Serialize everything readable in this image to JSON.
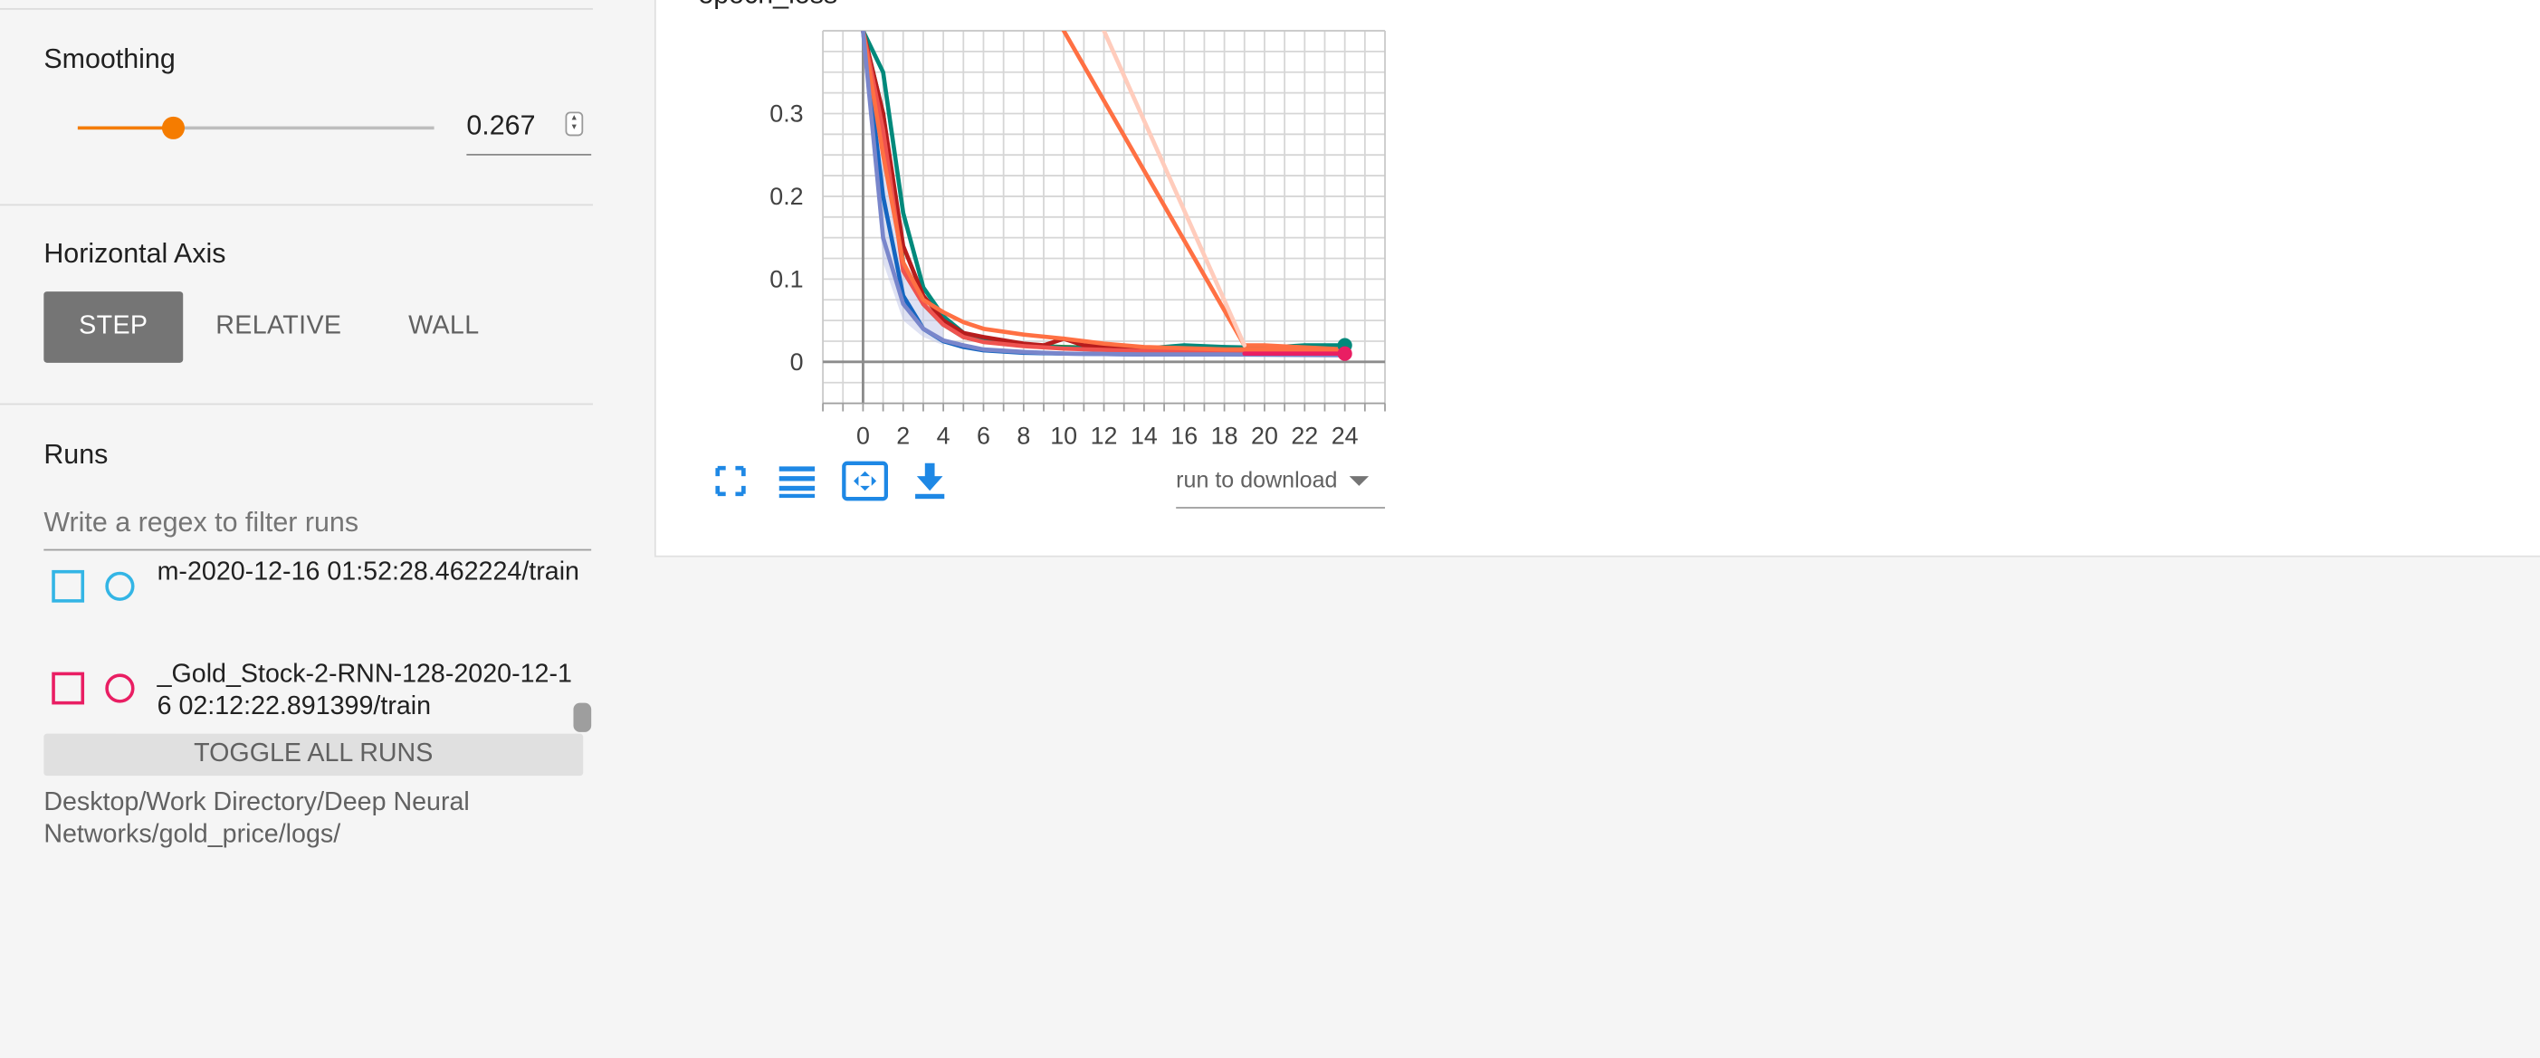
{
  "sidebar": {
    "smoothing": {
      "title": "Smoothing",
      "value": "0.267",
      "slider_fraction": 0.267
    },
    "horizontal_axis": {
      "title": "Horizontal Axis",
      "options": [
        "STEP",
        "RELATIVE",
        "WALL"
      ],
      "selected": "STEP"
    },
    "runs": {
      "title": "Runs",
      "filter_placeholder": "Write a regex to filter runs",
      "items": [
        {
          "label": "m-2020-12-16 01:52:28.462224/train",
          "color": "#33b5e5",
          "checked": false
        },
        {
          "label": "_Gold_Stock-2-RNN-128-2020-12-16 02:12:22.891399/train",
          "color": "#e91e63",
          "checked": false
        }
      ],
      "toggle_all_label": "TOGGLE ALL RUNS",
      "log_dir": "Desktop/Work Directory/Deep Neural Networks/gold_price/logs/"
    }
  },
  "card": {
    "title": "epoch_loss",
    "download_placeholder": "run to download",
    "tools": [
      "fullscreen-icon",
      "data-table-icon",
      "fit-domain-icon",
      "download-icon"
    ]
  },
  "chart_data": {
    "type": "line",
    "title": "epoch_loss",
    "xlabel": "",
    "ylabel": "",
    "x_ticks": [
      0,
      2,
      4,
      6,
      8,
      10,
      12,
      14,
      16,
      18,
      20,
      22,
      24
    ],
    "y_ticks": [
      "0",
      "0.1",
      "0.2",
      "0.3"
    ],
    "xlim": [
      -2,
      26
    ],
    "ylim": [
      -0.05,
      0.4
    ],
    "grid": true,
    "series": [
      {
        "color": "#1565c0",
        "values": [
          [
            0,
            0.4
          ],
          [
            1,
            0.2
          ],
          [
            2,
            0.08
          ],
          [
            3,
            0.04
          ],
          [
            4,
            0.025
          ],
          [
            5,
            0.018
          ],
          [
            6,
            0.014
          ],
          [
            8,
            0.011
          ],
          [
            10,
            0.01
          ],
          [
            14,
            0.009
          ],
          [
            18,
            0.009
          ],
          [
            24,
            0.009
          ]
        ]
      },
      {
        "color": "#2e7d32",
        "values": [
          [
            0,
            0.4
          ],
          [
            1,
            0.3
          ],
          [
            2,
            0.12
          ],
          [
            3,
            0.07
          ],
          [
            4,
            0.045
          ],
          [
            5,
            0.03
          ],
          [
            6,
            0.025
          ],
          [
            8,
            0.02
          ],
          [
            10,
            0.018
          ],
          [
            14,
            0.016
          ],
          [
            18,
            0.017
          ],
          [
            24,
            0.018
          ]
        ]
      },
      {
        "color": "#00897b",
        "values": [
          [
            0,
            0.4
          ],
          [
            1,
            0.35
          ],
          [
            2,
            0.18
          ],
          [
            3,
            0.09
          ],
          [
            4,
            0.055
          ],
          [
            5,
            0.035
          ],
          [
            6,
            0.026
          ],
          [
            8,
            0.02
          ],
          [
            10,
            0.017
          ],
          [
            14,
            0.016
          ],
          [
            16,
            0.02
          ],
          [
            18,
            0.018
          ],
          [
            20,
            0.017
          ],
          [
            22,
            0.02
          ],
          [
            24,
            0.02
          ]
        ]
      },
      {
        "color": "#b71c1c",
        "values": [
          [
            0,
            0.4
          ],
          [
            1,
            0.3
          ],
          [
            2,
            0.14
          ],
          [
            3,
            0.08
          ],
          [
            4,
            0.05
          ],
          [
            5,
            0.035
          ],
          [
            6,
            0.03
          ],
          [
            8,
            0.022
          ],
          [
            9,
            0.02
          ],
          [
            10,
            0.028
          ],
          [
            11,
            0.02
          ],
          [
            14,
            0.015
          ],
          [
            18,
            0.013
          ],
          [
            24,
            0.013
          ]
        ]
      },
      {
        "color": "#ef5350",
        "values": [
          [
            0,
            0.4
          ],
          [
            1,
            0.28
          ],
          [
            2,
            0.11
          ],
          [
            3,
            0.07
          ],
          [
            4,
            0.045
          ],
          [
            5,
            0.03
          ],
          [
            6,
            0.024
          ],
          [
            8,
            0.019
          ],
          [
            10,
            0.016
          ],
          [
            14,
            0.013
          ],
          [
            18,
            0.012
          ],
          [
            24,
            0.011
          ]
        ]
      },
      {
        "color": "#ff7043",
        "values": [
          [
            0,
            0.4
          ],
          [
            1,
            0.25
          ],
          [
            2,
            0.12
          ],
          [
            3,
            0.075
          ],
          [
            4,
            0.06
          ],
          [
            5,
            0.048
          ],
          [
            6,
            0.04
          ],
          [
            8,
            0.033
          ],
          [
            10,
            0.028
          ],
          [
            12,
            0.022
          ],
          [
            14,
            0.018
          ],
          [
            18,
            0.015
          ],
          [
            24,
            0.015
          ]
        ]
      },
      {
        "color": "#7986cb",
        "values": [
          [
            0,
            0.4
          ],
          [
            1,
            0.15
          ],
          [
            2,
            0.07
          ],
          [
            3,
            0.04
          ],
          [
            4,
            0.026
          ],
          [
            5,
            0.02
          ],
          [
            6,
            0.015
          ],
          [
            8,
            0.012
          ],
          [
            10,
            0.01
          ],
          [
            14,
            0.009
          ],
          [
            18,
            0.009
          ],
          [
            24,
            0.008
          ]
        ]
      },
      {
        "color": "#ff7043",
        "values": [
          [
            10,
            0.4
          ],
          [
            19,
            0.02
          ],
          [
            20,
            0.02
          ],
          [
            24,
            0.015
          ]
        ]
      },
      {
        "color": "#ffccbc",
        "values": [
          [
            12,
            0.4
          ],
          [
            19,
            0.02
          ]
        ]
      },
      {
        "color": "#e91e63",
        "values": [
          [
            19,
            0.01
          ],
          [
            24,
            0.01
          ]
        ]
      }
    ],
    "end_markers": [
      {
        "color": "#00897b",
        "x": 24,
        "y": 0.02
      },
      {
        "color": "#e91e63",
        "x": 24,
        "y": 0.01
      }
    ],
    "shaded_band": {
      "color": "#c5cae9",
      "upper": [
        [
          0,
          0.4
        ],
        [
          1,
          0.25
        ],
        [
          2,
          0.12
        ],
        [
          3,
          0.07
        ],
        [
          4,
          0.05
        ]
      ],
      "lower": [
        [
          4,
          0.02
        ],
        [
          3,
          0.03
        ],
        [
          2,
          0.05
        ],
        [
          1,
          0.12
        ],
        [
          0,
          0.4
        ]
      ]
    }
  }
}
